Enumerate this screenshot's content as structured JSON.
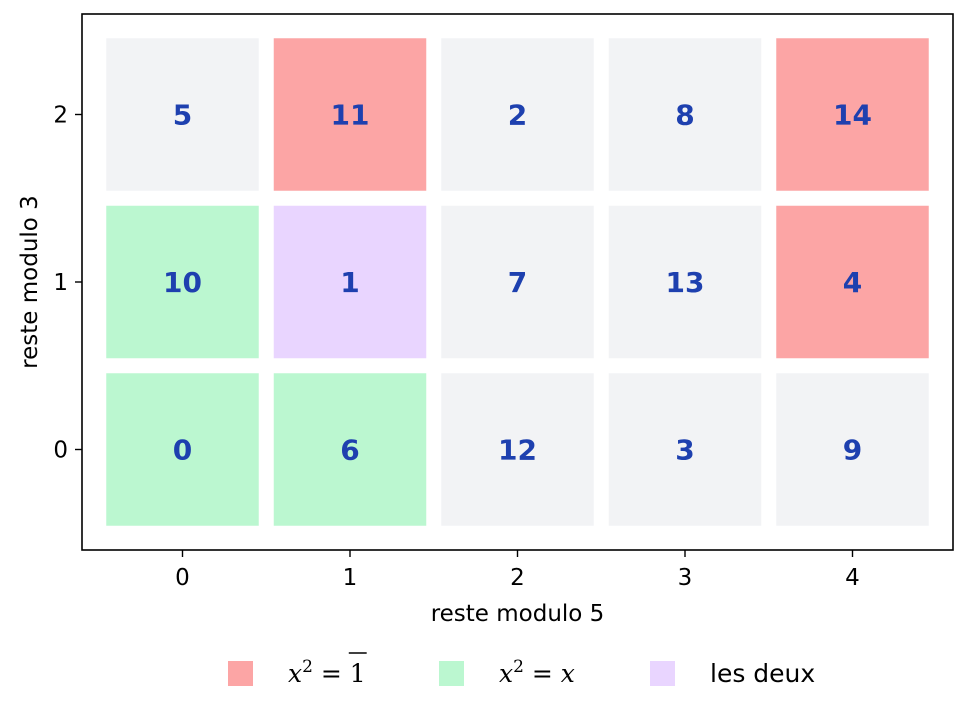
{
  "chart_data": {
    "type": "heatmap",
    "xlabel": "reste modulo 5",
    "ylabel": "reste modulo 3",
    "x_ticks": [
      "0",
      "1",
      "2",
      "3",
      "4"
    ],
    "y_ticks": [
      "0",
      "1",
      "2"
    ],
    "xlim": [
      -0.6,
      4.6
    ],
    "ylim": [
      -0.6,
      2.6
    ],
    "grid": false,
    "legend_position": "bottom-center",
    "cells": [
      {
        "x": 0,
        "y": 2,
        "label": "5",
        "category": "none"
      },
      {
        "x": 1,
        "y": 2,
        "label": "11",
        "category": "sq_minus_one"
      },
      {
        "x": 2,
        "y": 2,
        "label": "2",
        "category": "none"
      },
      {
        "x": 3,
        "y": 2,
        "label": "8",
        "category": "none"
      },
      {
        "x": 4,
        "y": 2,
        "label": "14",
        "category": "sq_minus_one"
      },
      {
        "x": 0,
        "y": 1,
        "label": "10",
        "category": "idempotent"
      },
      {
        "x": 1,
        "y": 1,
        "label": "1",
        "category": "both"
      },
      {
        "x": 2,
        "y": 1,
        "label": "7",
        "category": "none"
      },
      {
        "x": 3,
        "y": 1,
        "label": "13",
        "category": "none"
      },
      {
        "x": 4,
        "y": 1,
        "label": "4",
        "category": "sq_minus_one"
      },
      {
        "x": 0,
        "y": 0,
        "label": "0",
        "category": "idempotent"
      },
      {
        "x": 1,
        "y": 0,
        "label": "6",
        "category": "idempotent"
      },
      {
        "x": 2,
        "y": 0,
        "label": "12",
        "category": "none"
      },
      {
        "x": 3,
        "y": 0,
        "label": "3",
        "category": "none"
      },
      {
        "x": 4,
        "y": 0,
        "label": "9",
        "category": "none"
      }
    ],
    "colors": {
      "sq_minus_one": "#fca5a5",
      "idempotent": "#bbf7d0",
      "both": "#e9d5ff",
      "none": "#f2f3f5",
      "text": "#1e40af",
      "frame": "#000000"
    },
    "legend": [
      {
        "category": "sq_minus_one",
        "label_parts": {
          "base": "x",
          "exp": "2",
          "eq": " = ",
          "rhs": "1"
        }
      },
      {
        "category": "idempotent",
        "label_parts": {
          "base": "x",
          "exp": "2",
          "eq": " = ",
          "rhs": "x"
        }
      },
      {
        "category": "both",
        "label": "les deux"
      }
    ]
  }
}
